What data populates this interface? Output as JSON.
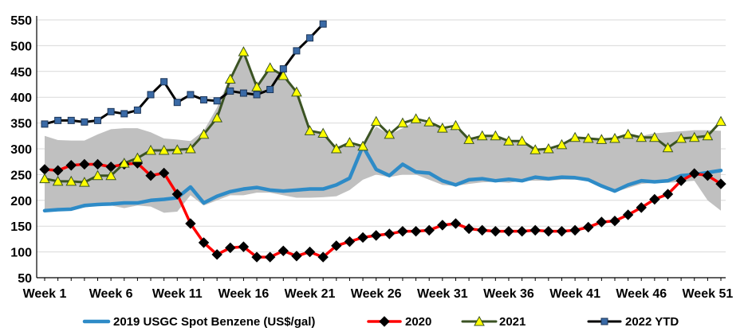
{
  "chart_data": {
    "type": "line",
    "title": "",
    "xlabel": "",
    "ylabel": "",
    "ylim": [
      50,
      550
    ],
    "yticks": [
      50,
      100,
      150,
      200,
      250,
      300,
      350,
      400,
      450,
      500,
      550
    ],
    "xticks": [
      "Week 1",
      "Week 6",
      "Week 11",
      "Week 16",
      "Week 21",
      "Week 26",
      "Week 31",
      "Week 36",
      "Week 41",
      "Week 46",
      "Week 51"
    ],
    "xtick_weeks": [
      1,
      6,
      11,
      16,
      21,
      26,
      31,
      36,
      41,
      46,
      51
    ],
    "x_weeks": [
      1,
      2,
      3,
      4,
      5,
      6,
      7,
      8,
      9,
      10,
      11,
      12,
      13,
      14,
      15,
      16,
      17,
      18,
      19,
      20,
      21,
      22,
      23,
      24,
      25,
      26,
      27,
      28,
      29,
      30,
      31,
      32,
      33,
      34,
      35,
      36,
      37,
      38,
      39,
      40,
      41,
      42,
      43,
      44,
      45,
      46,
      47,
      48,
      49,
      50,
      51,
      52
    ],
    "grid": "horizontal",
    "legend_position": "bottom",
    "colors": {
      "range": "#c0c0c0",
      "s2019": "#2e8bc7",
      "s2020": "#ff0000",
      "s2020_marker": "#000000",
      "s2021": "#3b5323",
      "s2021_marker": "#ffff00",
      "s2022": "#000000",
      "s2022_marker": "#3a6aa6"
    },
    "range_band": {
      "upper": [
        325,
        317,
        316,
        316,
        328,
        338,
        340,
        340,
        332,
        320,
        318,
        315,
        335,
        380,
        440,
        488,
        420,
        452,
        445,
        410,
        333,
        328,
        303,
        305,
        308,
        343,
        328,
        340,
        355,
        348,
        340,
        338,
        322,
        325,
        325,
        316,
        316,
        300,
        302,
        308,
        320,
        320,
        318,
        322,
        325,
        325,
        330,
        332,
        334,
        336,
        336,
        335
      ],
      "lower": [
        178,
        180,
        185,
        186,
        190,
        190,
        185,
        190,
        188,
        176,
        178,
        210,
        190,
        200,
        210,
        210,
        215,
        215,
        210,
        205,
        205,
        206,
        208,
        220,
        240,
        250,
        245,
        250,
        250,
        240,
        230,
        228,
        232,
        235,
        236,
        234,
        238,
        238,
        238,
        240,
        240,
        238,
        230,
        216,
        224,
        232,
        234,
        234,
        236,
        238,
        200,
        180
      ]
    },
    "series": [
      {
        "name": "2019 USGC Spot Benzene (US$/gal)",
        "values": [
          180,
          182,
          183,
          190,
          192,
          193,
          195,
          195,
          200,
          202,
          205,
          226,
          195,
          208,
          217,
          222,
          225,
          220,
          218,
          220,
          222,
          222,
          230,
          243,
          305,
          260,
          248,
          270,
          255,
          253,
          238,
          230,
          240,
          242,
          238,
          241,
          238,
          245,
          242,
          245,
          244,
          240,
          228,
          218,
          230,
          238,
          236,
          238,
          248,
          250,
          254,
          258
        ]
      },
      {
        "name": "2020",
        "values": [
          260,
          258,
          268,
          270,
          270,
          265,
          270,
          272,
          248,
          253,
          212,
          155,
          118,
          95,
          108,
          110,
          90,
          90,
          102,
          92,
          100,
          90,
          112,
          120,
          128,
          132,
          135,
          140,
          140,
          142,
          152,
          155,
          145,
          142,
          140,
          140,
          140,
          142,
          140,
          140,
          142,
          148,
          158,
          160,
          172,
          186,
          202,
          212,
          238,
          252,
          248,
          232
        ]
      },
      {
        "name": "2021",
        "values": [
          242,
          237,
          237,
          235,
          248,
          248,
          272,
          282,
          297,
          297,
          298,
          300,
          328,
          360,
          435,
          488,
          420,
          457,
          442,
          410,
          335,
          330,
          300,
          312,
          305,
          353,
          328,
          350,
          358,
          352,
          340,
          345,
          318,
          325,
          325,
          315,
          315,
          298,
          300,
          308,
          322,
          320,
          318,
          320,
          328,
          322,
          322,
          302,
          320,
          322,
          325,
          353
        ]
      },
      {
        "name": "2022 YTD",
        "values": [
          348,
          355,
          355,
          352,
          355,
          372,
          368,
          375,
          405,
          430,
          390,
          405,
          395,
          393,
          412,
          408,
          405,
          415,
          455,
          490,
          515,
          542
        ]
      }
    ]
  }
}
